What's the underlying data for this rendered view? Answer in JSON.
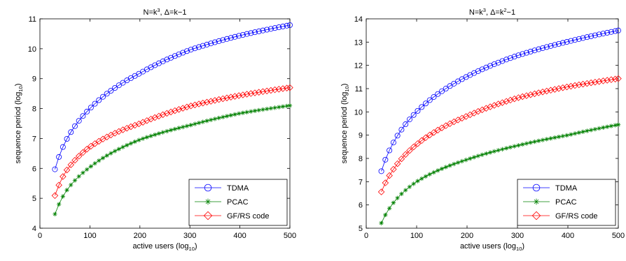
{
  "chart_data": [
    {
      "type": "line",
      "title": "N=k³, Δ=k−1",
      "title_parts": {
        "a": "N=k",
        "a_sup": "3",
        "b": ", Δ=k−1",
        "b_sup": ""
      },
      "xlabel": "active users (log",
      "xlabel_sub": "10",
      "xlabel_end": ")",
      "ylabel": "sequence period (log",
      "ylabel_sub": "10",
      "ylabel_end": ")",
      "xlim": [
        0,
        500
      ],
      "ylim": [
        4,
        11
      ],
      "xticks": [
        0,
        100,
        200,
        300,
        400,
        500
      ],
      "yticks": [
        4,
        5,
        6,
        7,
        8,
        9,
        10,
        11
      ],
      "grid": false,
      "legend_position": "bottom-right",
      "x_start": 30,
      "x_end": 500,
      "x_step": 8,
      "series": [
        {
          "name": "TDMA",
          "color": "#0000ff",
          "marker": "circle",
          "key_x": [
            30,
            50,
            100,
            200,
            300,
            400,
            500
          ],
          "key_y": [
            5.97,
            6.86,
            8.0,
            9.18,
            9.96,
            10.44,
            10.79
          ]
        },
        {
          "name": "PCAC",
          "color": "#008000",
          "marker": "star",
          "key_x": [
            30,
            50,
            100,
            200,
            300,
            400,
            500
          ],
          "key_y": [
            4.47,
            5.18,
            6.04,
            6.96,
            7.44,
            7.84,
            8.1
          ]
        },
        {
          "name": "GF/RS code",
          "color": "#ff0000",
          "marker": "diamond",
          "key_x": [
            30,
            50,
            100,
            200,
            300,
            400,
            500
          ],
          "key_y": [
            5.09,
            5.85,
            6.72,
            7.5,
            8.08,
            8.44,
            8.7
          ]
        }
      ]
    },
    {
      "type": "line",
      "title": "N=k³, Δ=k²−1",
      "title_parts": {
        "a": "N=k",
        "a_sup": "3",
        "b": ", Δ=k",
        "b_sup": "2",
        "c": "−1"
      },
      "xlabel": "active users (log",
      "xlabel_sub": "10",
      "xlabel_end": ")",
      "ylabel": "sequence period (log",
      "ylabel_sub": "10",
      "ylabel_end": ")",
      "xlim": [
        0,
        500
      ],
      "ylim": [
        5,
        14
      ],
      "xticks": [
        0,
        100,
        200,
        300,
        400,
        500
      ],
      "yticks": [
        5,
        6,
        7,
        8,
        9,
        10,
        11,
        12,
        13,
        14
      ],
      "grid": false,
      "legend_position": "bottom-right",
      "x_start": 30,
      "x_end": 500,
      "x_step": 8,
      "series": [
        {
          "name": "TDMA",
          "color": "#0000ff",
          "marker": "circle",
          "key_x": [
            30,
            50,
            100,
            200,
            300,
            400,
            500
          ],
          "key_y": [
            7.45,
            8.52,
            10.0,
            11.52,
            12.42,
            13.02,
            13.5
          ]
        },
        {
          "name": "PCAC",
          "color": "#008000",
          "marker": "star",
          "key_x": [
            30,
            50,
            100,
            200,
            300,
            400,
            500
          ],
          "key_y": [
            5.22,
            5.98,
            7.0,
            7.95,
            8.55,
            9.0,
            9.45
          ]
        },
        {
          "name": "GF/RS code",
          "color": "#ff0000",
          "marker": "diamond",
          "key_x": [
            30,
            50,
            100,
            200,
            300,
            400,
            500
          ],
          "key_y": [
            6.56,
            7.4,
            8.6,
            9.82,
            10.6,
            11.08,
            11.43
          ]
        }
      ]
    }
  ]
}
